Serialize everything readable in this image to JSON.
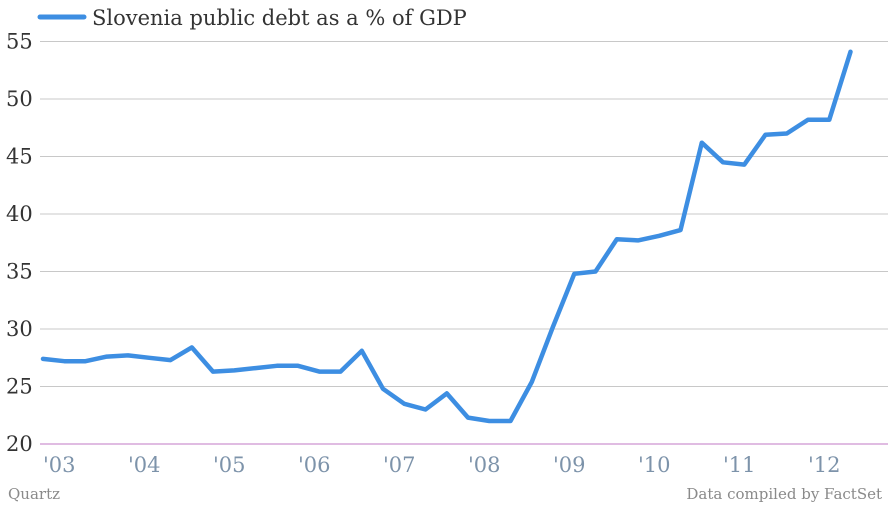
{
  "chart_data": {
    "type": "line",
    "title": "",
    "xlabel": "",
    "ylabel": "",
    "ylim": [
      20,
      56
    ],
    "yticks": [
      20,
      25,
      30,
      35,
      40,
      45,
      50,
      55
    ],
    "x_tick_labels": [
      "'03",
      "'04",
      "'05",
      "'06",
      "'07",
      "'08",
      "'09",
      "'10",
      "'11",
      "'12"
    ],
    "grid": true,
    "legend_position": "top-left",
    "series": [
      {
        "name": "Slovenia public debt as a % of GDP",
        "color": "#3d8ee2",
        "points": [
          {
            "x": "2003-Q1",
            "y": 27.4
          },
          {
            "x": "2003-Q2",
            "y": 27.2
          },
          {
            "x": "2003-Q3",
            "y": 27.2
          },
          {
            "x": "2003-Q4",
            "y": 27.6
          },
          {
            "x": "2004-Q1",
            "y": 27.7
          },
          {
            "x": "2004-Q2",
            "y": 27.5
          },
          {
            "x": "2004-Q3",
            "y": 27.3
          },
          {
            "x": "2004-Q4",
            "y": 28.4
          },
          {
            "x": "2005-Q1",
            "y": 26.3
          },
          {
            "x": "2005-Q2",
            "y": 26.4
          },
          {
            "x": "2005-Q3",
            "y": 26.6
          },
          {
            "x": "2005-Q4",
            "y": 26.8
          },
          {
            "x": "2006-Q1",
            "y": 26.8
          },
          {
            "x": "2006-Q2",
            "y": 26.3
          },
          {
            "x": "2006-Q3",
            "y": 26.3
          },
          {
            "x": "2006-Q4",
            "y": 28.1
          },
          {
            "x": "2007-Q1",
            "y": 24.8
          },
          {
            "x": "2007-Q2",
            "y": 23.5
          },
          {
            "x": "2007-Q3",
            "y": 23.0
          },
          {
            "x": "2007-Q4",
            "y": 24.4
          },
          {
            "x": "2008-Q1",
            "y": 22.3
          },
          {
            "x": "2008-Q2",
            "y": 22.0
          },
          {
            "x": "2008-Q3",
            "y": 22.0
          },
          {
            "x": "2008-Q4",
            "y": 25.4
          },
          {
            "x": "2009-Q1",
            "y": 30.2
          },
          {
            "x": "2009-Q2",
            "y": 34.8
          },
          {
            "x": "2009-Q3",
            "y": 35.0
          },
          {
            "x": "2009-Q4",
            "y": 37.8
          },
          {
            "x": "2010-Q1",
            "y": 37.7
          },
          {
            "x": "2010-Q2",
            "y": 38.1
          },
          {
            "x": "2010-Q3",
            "y": 38.6
          },
          {
            "x": "2010-Q4",
            "y": 46.2
          },
          {
            "x": "2011-Q1",
            "y": 44.5
          },
          {
            "x": "2011-Q2",
            "y": 44.3
          },
          {
            "x": "2011-Q3",
            "y": 46.9
          },
          {
            "x": "2011-Q4",
            "y": 47.0
          },
          {
            "x": "2012-Q1",
            "y": 48.2
          },
          {
            "x": "2012-Q2",
            "y": 48.2
          },
          {
            "x": "2012-Q3",
            "y": 54.1
          }
        ]
      }
    ]
  },
  "footer": {
    "source_left": "Quartz",
    "source_right": "Data compiled by FactSet"
  },
  "colors": {
    "line": "#3d8ee2",
    "grid": "#c8c8c8",
    "baseline": "#c17ac6",
    "xtick": "#7d93aa"
  }
}
